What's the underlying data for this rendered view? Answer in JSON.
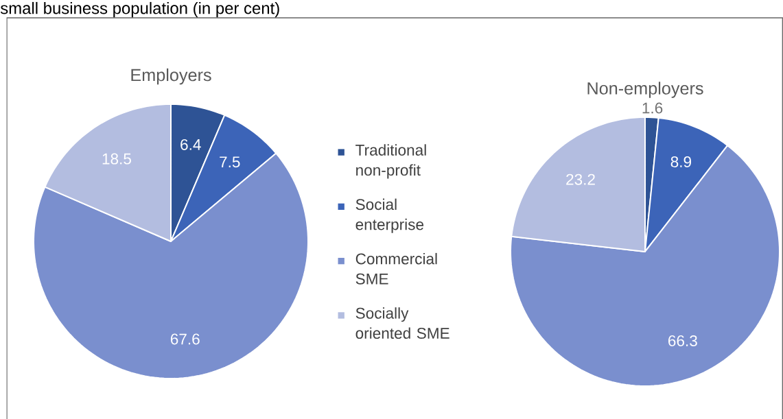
{
  "chart_data": [
    {
      "type": "pie",
      "title": "Employers",
      "subtitle": "small business population (in per cent)",
      "categories": [
        "Traditional non-profit",
        "Social enterprise",
        "Commercial SME",
        "Socially oriented SME"
      ],
      "values": [
        6.4,
        7.5,
        67.6,
        18.5
      ],
      "colors": [
        "#2e5395",
        "#3c64b8",
        "#7a8fce",
        "#b3bde0"
      ],
      "data_labels": true,
      "legend": "right"
    },
    {
      "type": "pie",
      "title": "Non-employers",
      "categories": [
        null,
        null,
        null,
        null
      ],
      "values": [
        1.6,
        8.9,
        66.3,
        23.2
      ],
      "colors": [
        "#2e5395",
        "#3c64b8",
        "#7a8fce",
        "#b3bde0"
      ],
      "data_labels": true
    }
  ]
}
